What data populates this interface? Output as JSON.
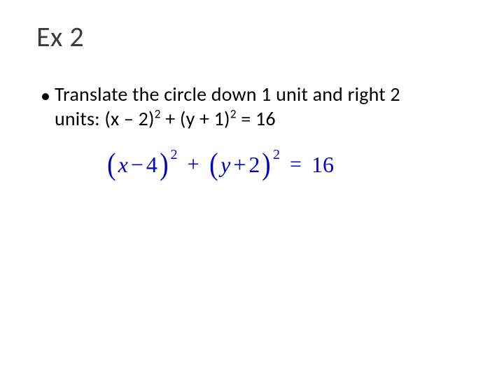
{
  "title": "Ex 2",
  "bullet_char": "•",
  "problem": {
    "line1": "Translate the circle down 1 unit and right 2",
    "line2_prefix": "units:  (x – 2)",
    "line2_exp1": "2",
    "line2_mid": " + (y + 1)",
    "line2_exp2": "2",
    "line2_suffix": " = 16"
  },
  "answer": {
    "term1_var": "x",
    "term1_op": "−",
    "term1_num": "4",
    "term1_exp": "2",
    "plus": "+",
    "term2_var": "y",
    "term2_op": "+",
    "term2_num": "2",
    "term2_exp": "2",
    "eq": "=",
    "rhs": "16",
    "color": "#0000cc"
  },
  "colors": {
    "background": "#ffffff",
    "title_text": "#3b3b3b",
    "body_text": "#000000"
  },
  "typography": {
    "title_fontsize": 40,
    "body_fontsize": 28,
    "answer_fontsize": 34,
    "title_family": "Calibri",
    "answer_family": "Times New Roman"
  }
}
